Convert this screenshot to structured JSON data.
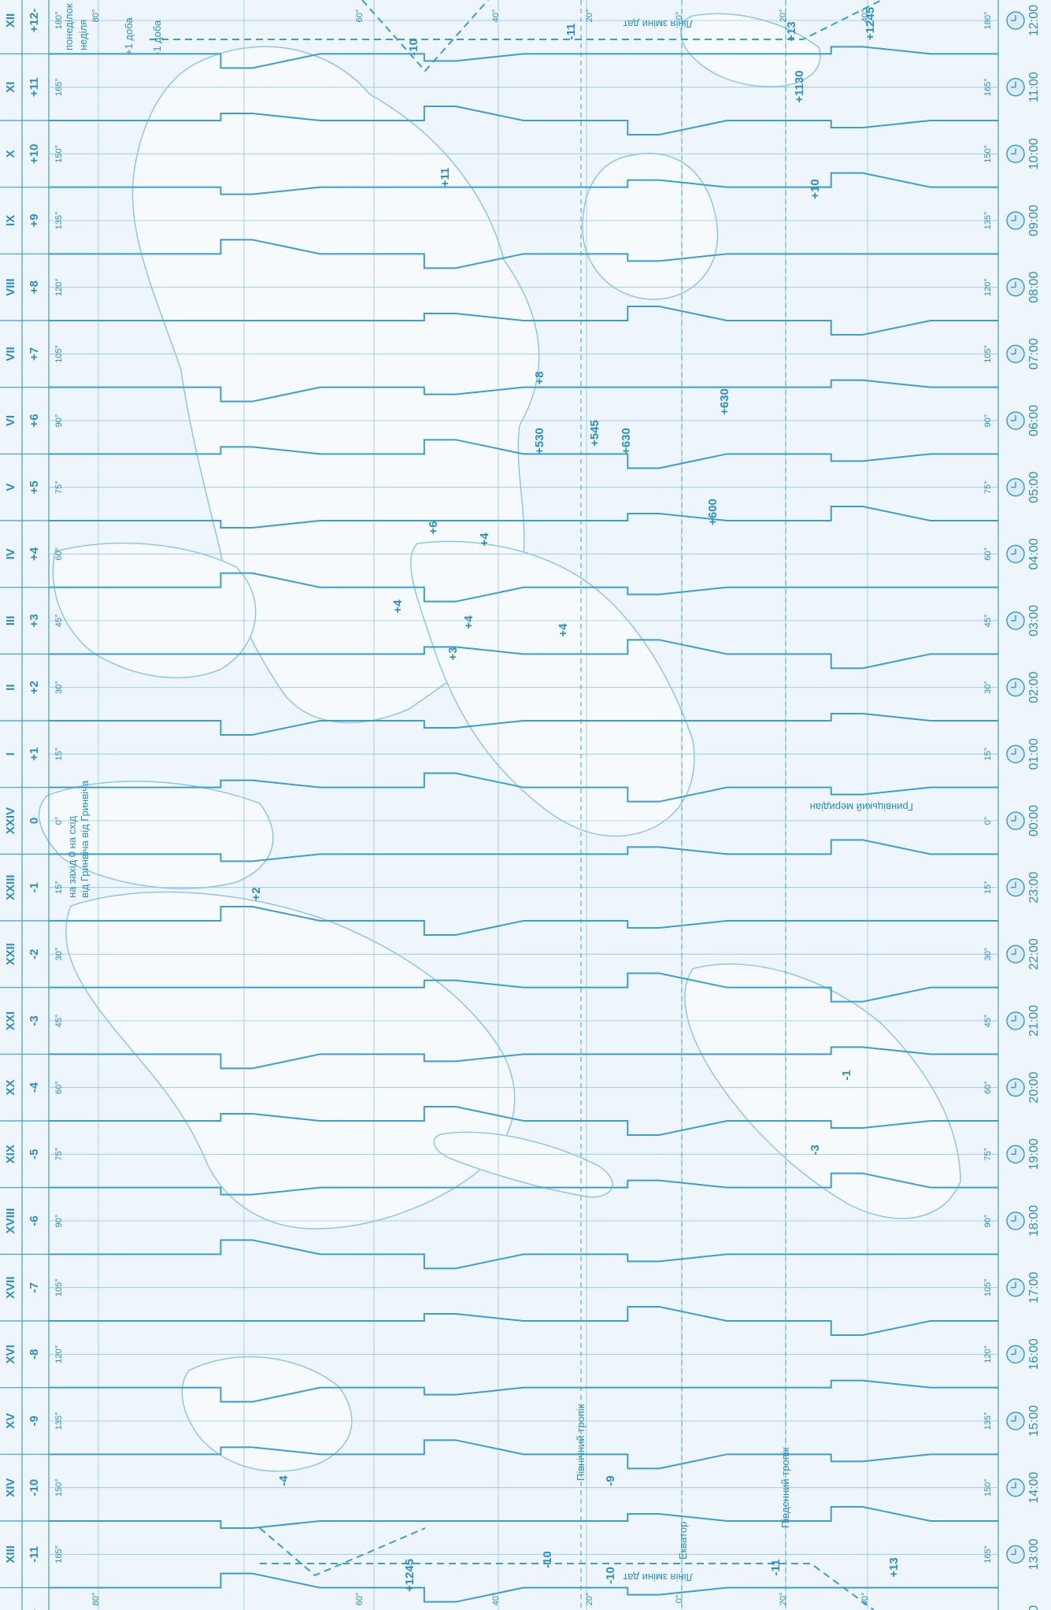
{
  "colors": {
    "background": "#eef5fb",
    "line": "#3a9fd0",
    "line_light": "#8cc8e6",
    "land": "#f6f9fc",
    "text": "#2a8fc4"
  },
  "zones": [
    {
      "roman": "XII",
      "offset": "+12-",
      "meridian": "180°",
      "time": "12:00"
    },
    {
      "roman": "XI",
      "offset": "+11",
      "meridian": "165°",
      "time": "11:00"
    },
    {
      "roman": "X",
      "offset": "+10",
      "meridian": "150°",
      "time": "10:00"
    },
    {
      "roman": "IX",
      "offset": "+9",
      "meridian": "135°",
      "time": "09:00"
    },
    {
      "roman": "VIII",
      "offset": "+8",
      "meridian": "120°",
      "time": "08:00"
    },
    {
      "roman": "VII",
      "offset": "+7",
      "meridian": "105°",
      "time": "07:00"
    },
    {
      "roman": "VI",
      "offset": "+6",
      "meridian": "90°",
      "time": "06:00"
    },
    {
      "roman": "V",
      "offset": "+5",
      "meridian": "75°",
      "time": "05:00"
    },
    {
      "roman": "IV",
      "offset": "+4",
      "meridian": "60°",
      "time": "04:00"
    },
    {
      "roman": "III",
      "offset": "+3",
      "meridian": "45°",
      "time": "03:00"
    },
    {
      "roman": "II",
      "offset": "+2",
      "meridian": "30°",
      "time": "02:00"
    },
    {
      "roman": "I",
      "offset": "+1",
      "meridian": "15°",
      "time": "01:00"
    },
    {
      "roman": "XXIV",
      "offset": "0",
      "meridian": "0°",
      "time": "00:00"
    },
    {
      "roman": "XXIII",
      "offset": "-1",
      "meridian": "15°",
      "time": "23:00"
    },
    {
      "roman": "XXII",
      "offset": "-2",
      "meridian": "30°",
      "time": "22:00"
    },
    {
      "roman": "XXI",
      "offset": "-3",
      "meridian": "45°",
      "time": "21:00"
    },
    {
      "roman": "XX",
      "offset": "-4",
      "meridian": "60°",
      "time": "20:00"
    },
    {
      "roman": "XIX",
      "offset": "-5",
      "meridian": "75°",
      "time": "19:00"
    },
    {
      "roman": "XVIII",
      "offset": "-6",
      "meridian": "90°",
      "time": "18:00"
    },
    {
      "roman": "XVII",
      "offset": "-7",
      "meridian": "105°",
      "time": "17:00"
    },
    {
      "roman": "XVI",
      "offset": "-8",
      "meridian": "120°",
      "time": "16:00"
    },
    {
      "roman": "XV",
      "offset": "-9",
      "meridian": "135°",
      "time": "15:00"
    },
    {
      "roman": "XIV",
      "offset": "-10",
      "meridian": "150°",
      "time": "14:00"
    },
    {
      "roman": "XIII",
      "offset": "-11",
      "meridian": "165°",
      "time": "13:00"
    },
    {
      "roman": "XII",
      "offset": "+12-",
      "meridian": "180°",
      "time": "12:00"
    }
  ],
  "latitude_labels": [
    "80°",
    "60°",
    "40°",
    "20°",
    "0°",
    "20°",
    "40°"
  ],
  "notes": {
    "top_dateline_1": "понеділок",
    "top_dateline_2": "неділя",
    "plus_day": "+1 доба",
    "minus_day": "-1 доба",
    "date_line_top": "Лінія зміни дат",
    "date_line_bottom": "Лінія зміни дат",
    "tropic_north": "Північний тропік",
    "tropic_south": "Південний тропік",
    "equator": "Екватор",
    "greenwich": "Гринвіцький меридіан",
    "east_west": "на захід 0 на схід",
    "from_greenwich": "від Гринвіча  від Гринвіча"
  },
  "map_numbers": [
    "-10",
    "-11",
    "+13",
    "+1245",
    "+11",
    "+1130",
    "+10",
    "+8",
    "+630",
    "+545",
    "+530",
    "+630",
    "+600",
    "+6",
    "+4",
    "+4",
    "+4",
    "+4",
    "+3",
    "+2",
    "-1",
    "-3",
    "-4",
    "-9",
    "-10",
    "-11",
    "+13",
    "+1245",
    "-10"
  ]
}
